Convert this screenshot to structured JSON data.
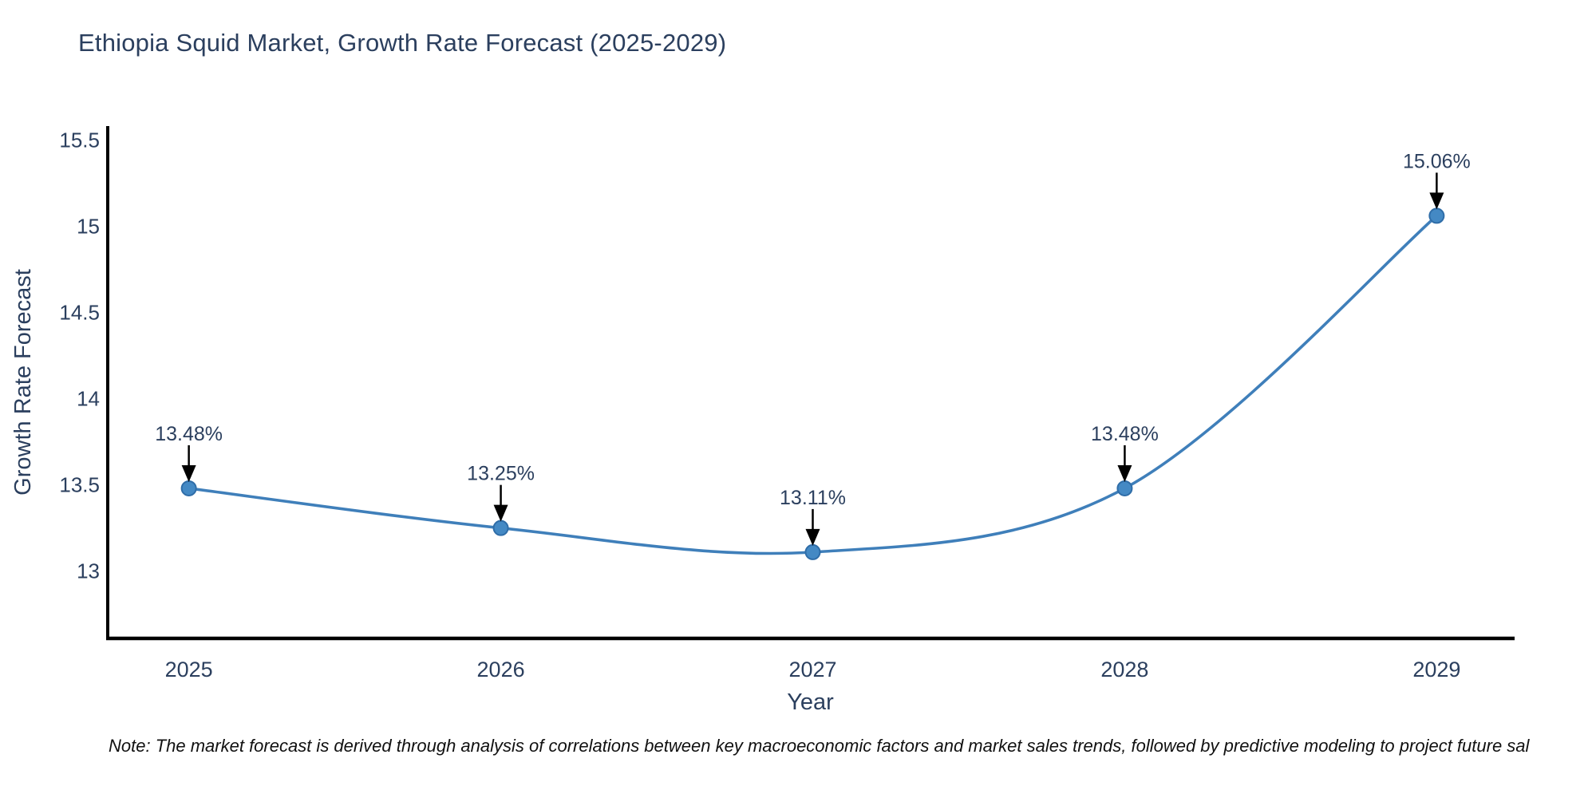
{
  "header": {
    "title": "Ethiopia Squid Market, Growth Rate Forecast (2025-2029)"
  },
  "note": {
    "text": "Note: The market forecast is derived through analysis of correlations between key macroeconomic factors and market sales trends, followed by predictive modeling to project future sal"
  },
  "chart_data": {
    "type": "line",
    "title": "Ethiopia Squid Market, Growth Rate Forecast (2025-2029)",
    "xlabel": "Year",
    "ylabel": "Growth Rate Forecast",
    "x": [
      2025,
      2026,
      2027,
      2028,
      2029
    ],
    "values": [
      13.48,
      13.25,
      13.11,
      13.48,
      15.06
    ],
    "point_labels": [
      "13.48%",
      "13.25%",
      "13.11%",
      "13.48%",
      "15.06%"
    ],
    "yticks": [
      13,
      13.5,
      14,
      14.5,
      15,
      15.5
    ],
    "ytick_labels": [
      "13",
      "13.5",
      "14",
      "14.5",
      "15",
      "15.5"
    ],
    "xtick_labels": [
      "2025",
      "2026",
      "2027",
      "2028",
      "2029"
    ],
    "ylim": [
      12.61,
      15.58
    ],
    "xlim": [
      2024.74,
      2029.26
    ],
    "line_shape": "spline",
    "grid": false,
    "legend_position": "none",
    "annotations_have_arrows": true,
    "colors": {
      "line": "#3f7fba",
      "marker_fill": "#4489c4",
      "marker_edge": "#2f6da8",
      "axis_spine": "#000000",
      "tick_text": "#2b3f5e",
      "axis_title_text": "#2b3f5e",
      "annotation_text": "#2b3f5e",
      "annotation_arrow": "#000000",
      "title_text": "#2b3f5e",
      "note_text": "#111111",
      "background": "#ffffff"
    }
  }
}
